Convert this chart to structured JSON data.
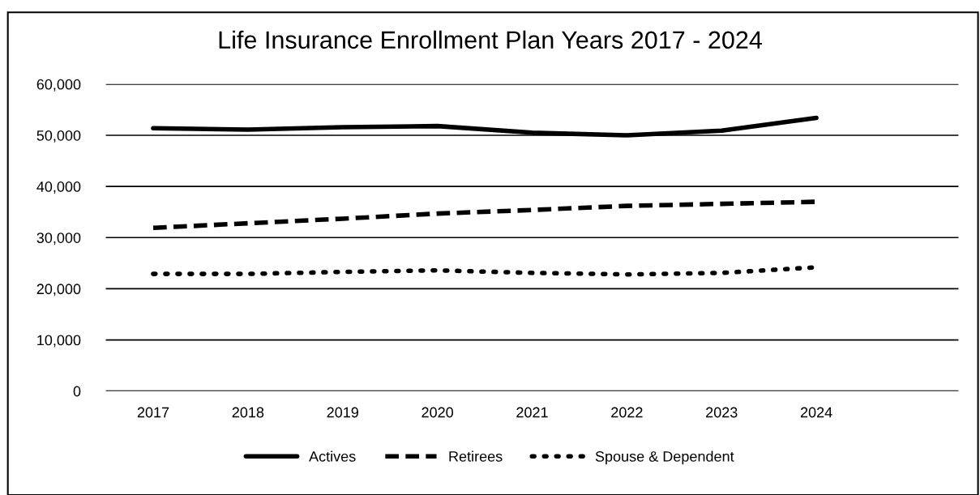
{
  "chart_data": {
    "type": "line",
    "title": "Life Insurance Enrollment Plan Years 2017 - 2024",
    "categories": [
      "2017",
      "2018",
      "2019",
      "2020",
      "2021",
      "2022",
      "2023",
      "2024",
      null
    ],
    "series": [
      {
        "name": "Actives",
        "color": "#000000",
        "line_style": "solid",
        "values": [
          51400,
          51100,
          51600,
          51800,
          50500,
          50000,
          50900,
          53400,
          null
        ]
      },
      {
        "name": "Retirees",
        "color": "#000000",
        "line_style": "dashed",
        "values": [
          31900,
          32800,
          33700,
          34700,
          35400,
          36200,
          36600,
          37000,
          null
        ]
      },
      {
        "name": "Spouse & Dependent",
        "color": "#000000",
        "line_style": "dotted",
        "values": [
          22900,
          22900,
          23300,
          23600,
          23100,
          22800,
          23100,
          24200,
          null
        ]
      }
    ],
    "ylim": [
      0,
      60000
    ],
    "yticks": [
      {
        "value": 0,
        "label": "0"
      },
      {
        "value": 10000,
        "label": "10,000"
      },
      {
        "value": 20000,
        "label": "20,000"
      },
      {
        "value": 30000,
        "label": "30,000"
      },
      {
        "value": 40000,
        "label": "40,000"
      },
      {
        "value": 50000,
        "label": "50,000"
      },
      {
        "value": 60000,
        "label": "60,000"
      }
    ],
    "grid": "y",
    "legend": "bottom",
    "marker": "none"
  }
}
